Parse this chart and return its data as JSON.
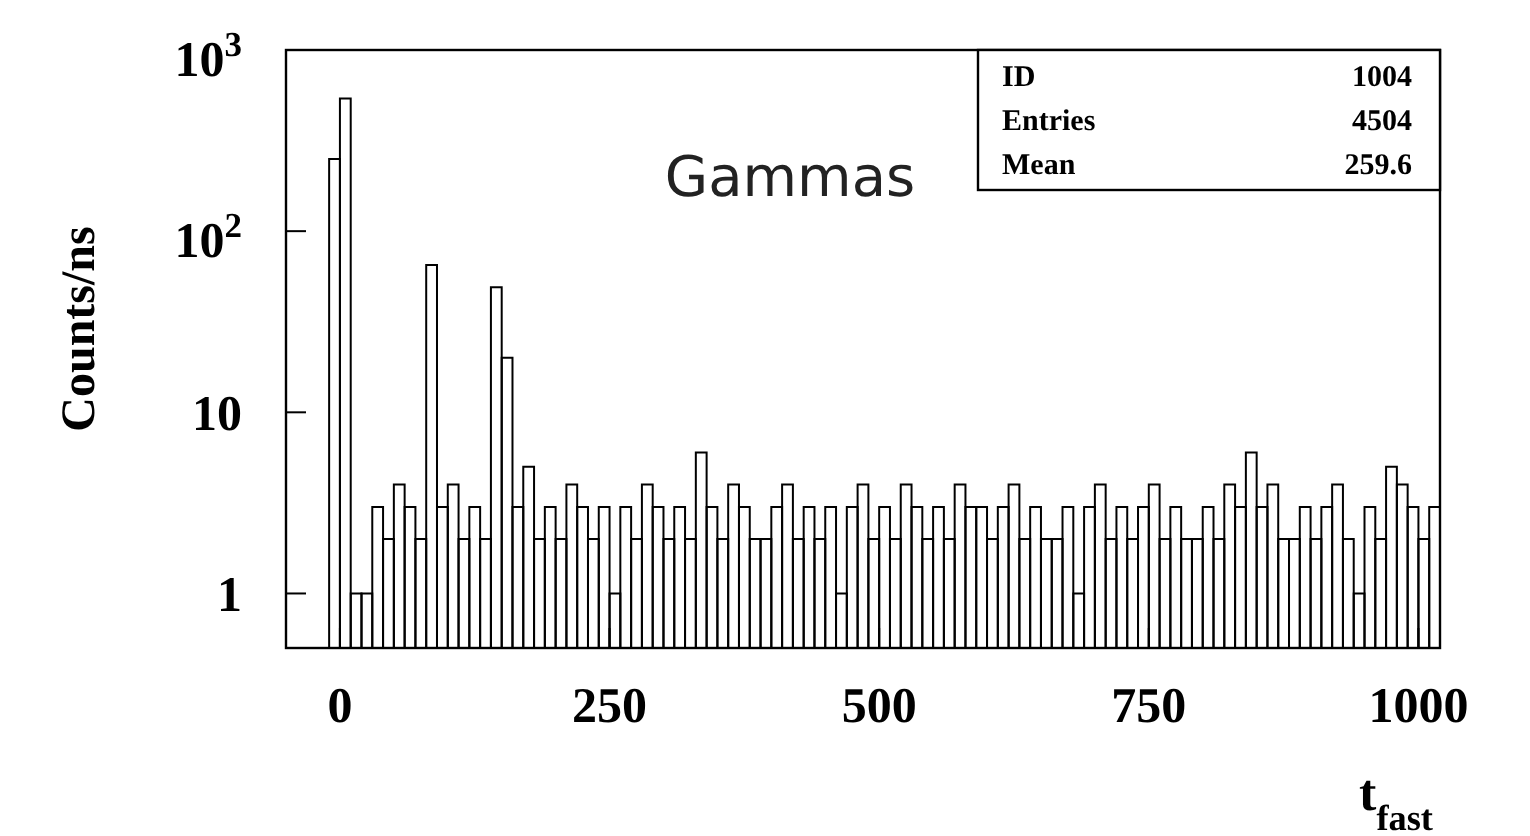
{
  "chart_data": {
    "type": "histogram",
    "xlabel": "t$_{fast}$",
    "ylabel": "Counts/ns",
    "log": "y",
    "grid": false,
    "color": "#000000",
    "xlim": [
      -50,
      1020
    ],
    "xticks": [
      0,
      250,
      500,
      750,
      1000
    ],
    "ylim": [
      0.5,
      1000
    ],
    "yticks": [
      1,
      10,
      {
        "value": 100,
        "label": "10$^{2}$"
      },
      {
        "value": 1000,
        "label": "10$^{3}$"
      }
    ],
    "annotations": [
      "Gammas",
      "ID",
      "1004",
      "Entries",
      "4504",
      "Mean",
      "259.6"
    ],
    "bins": [
      -10,
      0,
      10,
      20,
      30,
      40,
      50,
      60,
      70,
      80,
      90,
      100,
      110,
      120,
      130,
      140,
      150,
      160,
      170,
      180,
      190,
      200,
      210,
      220,
      230,
      240,
      250,
      260,
      270,
      280,
      290,
      300,
      310,
      320,
      330,
      340,
      350,
      360,
      370,
      380,
      390,
      400,
      410,
      420,
      430,
      440,
      450,
      460,
      470,
      480,
      490,
      500,
      510,
      520,
      530,
      540,
      550,
      560,
      570,
      580,
      590,
      600,
      610,
      620,
      630,
      640,
      650,
      660,
      670,
      680,
      690,
      700,
      710,
      720,
      730,
      740,
      750,
      760,
      770,
      780,
      790,
      800,
      810,
      820,
      830,
      840,
      850,
      860,
      870,
      880,
      890,
      900,
      910,
      920,
      930,
      940,
      950,
      960,
      970,
      980,
      990,
      1000,
      1010,
      1020
    ],
    "values": [
      250,
      540,
      1,
      1,
      3,
      2,
      4,
      3,
      2,
      65,
      3,
      4,
      2,
      3,
      2,
      49,
      20,
      3,
      5,
      2,
      3,
      2,
      4,
      3,
      2,
      3,
      1,
      3,
      2,
      4,
      3,
      2,
      3,
      2,
      6,
      3,
      2,
      4,
      3,
      2,
      2,
      3,
      4,
      2,
      3,
      2,
      3,
      1,
      3,
      4,
      2,
      3,
      2,
      4,
      3,
      2,
      3,
      2,
      4,
      3,
      3,
      2,
      3,
      4,
      2,
      3,
      2,
      2,
      3,
      1,
      3,
      4,
      2,
      3,
      2,
      3,
      4,
      2,
      3,
      2,
      2,
      3,
      2,
      4,
      3,
      6,
      3,
      4,
      2,
      2,
      3,
      2,
      3,
      4,
      2,
      1,
      3,
      2,
      5,
      4,
      3,
      2,
      3
    ]
  }
}
